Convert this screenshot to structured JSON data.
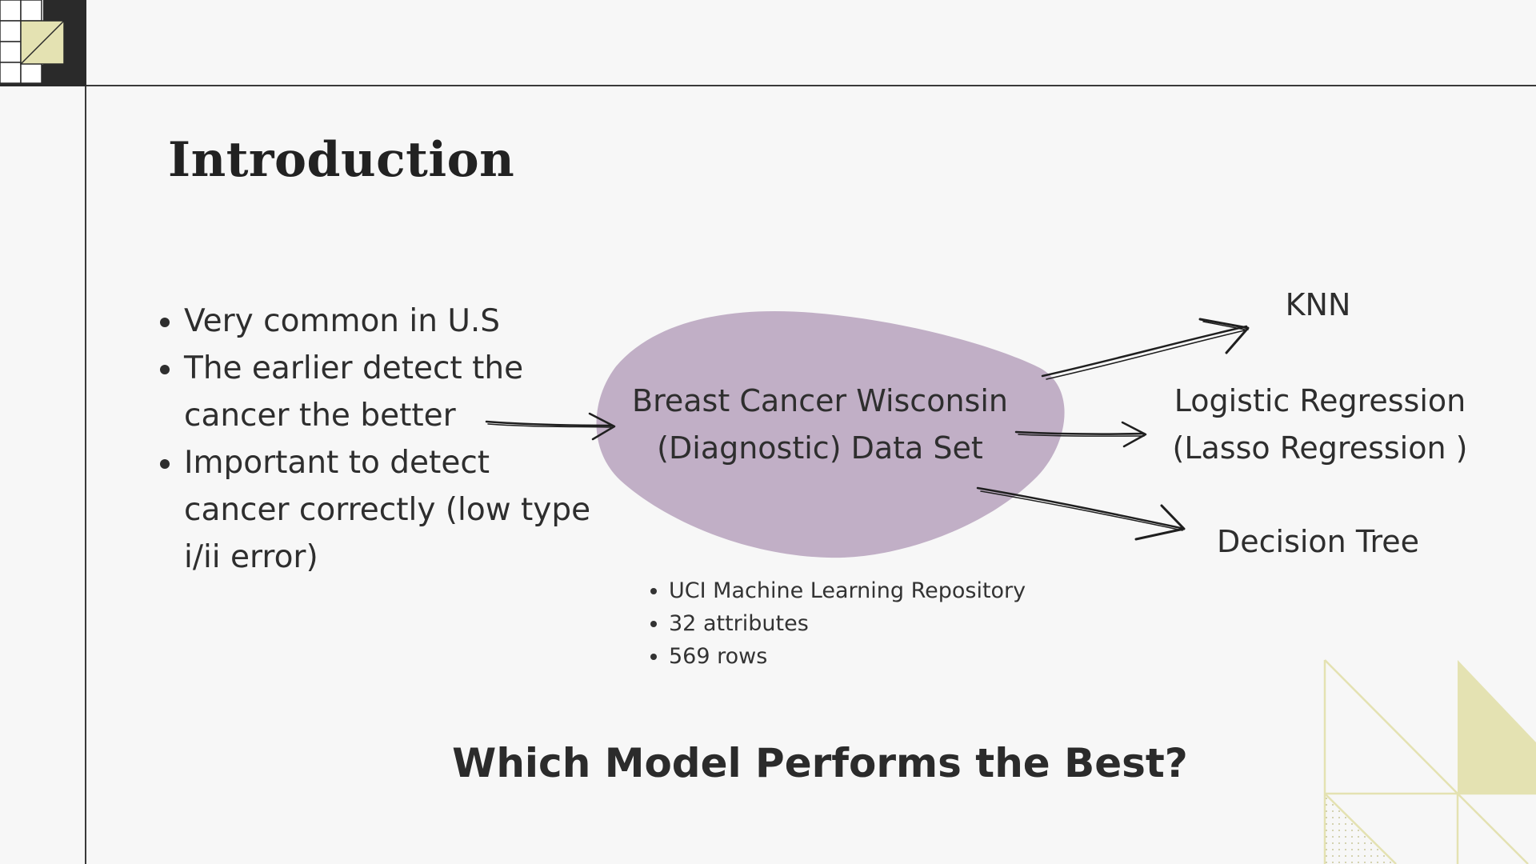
{
  "slide": {
    "title": "Introduction",
    "bullets": [
      "Very common in U.S",
      "The earlier detect the cancer the better",
      "Important to detect cancer correctly (low type i/ii error)"
    ],
    "dataset": {
      "line1": "Breast Cancer Wisconsin",
      "line2": "(Diagnostic) Data Set",
      "details": [
        "UCI Machine Learning Repository",
        "32 attributes",
        "569 rows"
      ]
    },
    "models": {
      "knn": "KNN",
      "lr_line1": "Logistic Regression",
      "lr_line2": "(Lasso Regression )",
      "dt": "Decision Tree"
    },
    "question": "Which Model Performs the Best?"
  },
  "colors": {
    "blob": "#c1afc6",
    "accent": "#e4e2b2",
    "corner_dark": "#2a2a2a",
    "background": "#f7f7f7"
  }
}
